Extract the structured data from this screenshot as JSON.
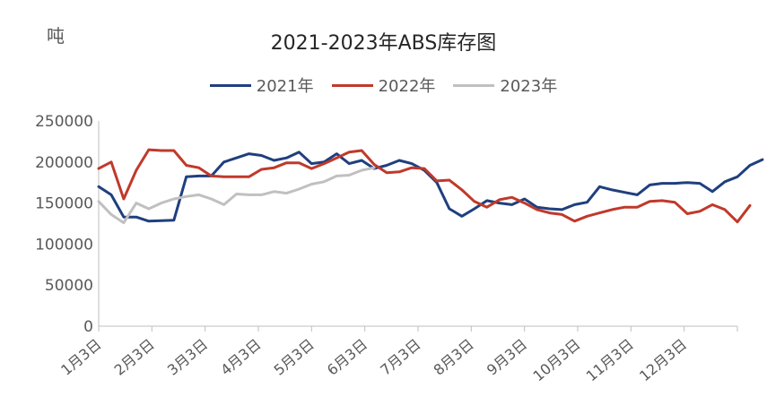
{
  "chart_data": {
    "type": "line",
    "title": "2021-2023年ABS库存图",
    "unit_label": "吨",
    "ylim": [
      0,
      250000
    ],
    "y_ticks": [
      0,
      50000,
      100000,
      150000,
      200000,
      250000
    ],
    "x_tick_labels": [
      "1月3日",
      "2月3日",
      "3月3日",
      "4月3日",
      "5月3日",
      "6月3日",
      "7月3日",
      "8月3日",
      "9月3日",
      "10月3日",
      "11月3日",
      "12月3日"
    ],
    "x_range_weeks": [
      0,
      51
    ],
    "grid": false,
    "legend_position": "top",
    "series": [
      {
        "name": "2021年",
        "color": "#1f3f7f",
        "values": [
          170000,
          160000,
          133000,
          133000,
          128000,
          128500,
          129000,
          182000,
          183000,
          183000,
          200000,
          205000,
          210000,
          208000,
          202000,
          205000,
          212000,
          198000,
          200000,
          210000,
          198000,
          202000,
          192000,
          196000,
          202000,
          198000,
          190000,
          175000,
          143000,
          134000,
          143000,
          153000,
          150000,
          148000,
          155000,
          145000,
          143000,
          142000,
          148000,
          151000,
          170000,
          166000,
          163000,
          160000,
          172000,
          174000,
          174000,
          175000,
          174000,
          164000,
          176000,
          182000,
          196000,
          203000
        ]
      },
      {
        "name": "2022年",
        "color": "#c0392b",
        "values": [
          192000,
          200000,
          155000,
          190000,
          215000,
          214000,
          214000,
          196000,
          193000,
          183000,
          182000,
          182000,
          182000,
          191000,
          193000,
          199000,
          199000,
          192000,
          198000,
          205000,
          212000,
          214000,
          197000,
          187000,
          188000,
          193000,
          192000,
          177000,
          178000,
          166000,
          152000,
          145000,
          154000,
          157000,
          150000,
          142000,
          138000,
          136000,
          128000,
          134000,
          138000,
          142000,
          145000,
          145000,
          152000,
          153000,
          151000,
          137000,
          140000,
          148000,
          142000,
          127000,
          147000
        ]
      },
      {
        "name": "2023年",
        "color": "#c0c0c0",
        "values": [
          152000,
          136000,
          126000,
          150000,
          143000,
          150000,
          155000,
          158000,
          160000,
          155000,
          148000,
          161000,
          160000,
          160000,
          164000,
          162000,
          167000,
          173000,
          176000,
          183000,
          184000,
          190000,
          193000
        ]
      }
    ]
  }
}
